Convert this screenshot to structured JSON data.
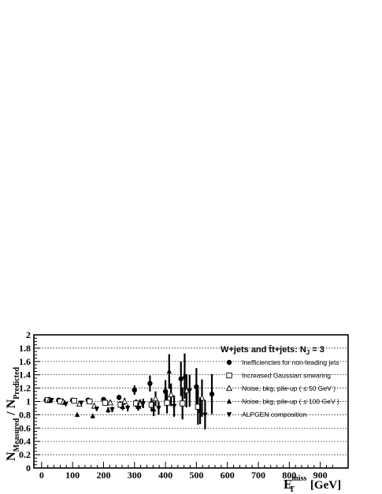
{
  "chart_data": {
    "type": "scatter",
    "title": "",
    "xlim": [
      -25,
      990
    ],
    "ylim": [
      0,
      2
    ],
    "x_ticks": [
      "0",
      "100",
      "200",
      "300",
      "400",
      "500",
      "600",
      "700",
      "800",
      "900"
    ],
    "y_ticks": [
      "0",
      "0.2",
      "0.4",
      "0.6",
      "0.8",
      "1",
      "1.2",
      "1.4",
      "1.6",
      "1.8",
      "2"
    ],
    "y_gridlines": [
      0.2,
      0.4,
      0.6,
      0.8,
      1.0,
      1.2,
      1.4,
      1.6,
      1.8
    ],
    "grid": "horizontal dotted",
    "xlabel": {
      "main": "E",
      "sup": "miss",
      "sub": "T",
      "unit": "[GeV]"
    },
    "ylabel": {
      "n1": "N",
      "s1": "Measured",
      "slash": " / ",
      "n2": "N",
      "s2": "Predicted"
    },
    "legend": {
      "placement": "top-right",
      "title": "W+jets and t̄t+jets: N",
      "title_sub": "J",
      "title_suffix": " = 3"
    },
    "series": [
      {
        "name": "Inefficiencies for non-leading jets",
        "marker": "filled-circle",
        "points": [
          {
            "x": 15,
            "y": 1.02,
            "err": 0.01
          },
          {
            "x": 55,
            "y": 1.02,
            "err": 0.02
          },
          {
            "x": 100,
            "y": 1.02,
            "err": 0.02
          },
          {
            "x": 150,
            "y": 1.02,
            "err": 0.02
          },
          {
            "x": 200,
            "y": 1.03,
            "err": 0.03
          },
          {
            "x": 250,
            "y": 1.06,
            "err": 0.04
          },
          {
            "x": 300,
            "y": 1.17,
            "err": 0.07
          },
          {
            "x": 350,
            "y": 1.27,
            "err": 0.12
          },
          {
            "x": 400,
            "y": 1.15,
            "err": 0.17
          },
          {
            "x": 450,
            "y": 1.34,
            "err": 0.26
          },
          {
            "x": 500,
            "y": 1.22,
            "err": 0.28
          },
          {
            "x": 550,
            "y": 1.11,
            "err": 0.3
          }
        ]
      },
      {
        "name": "Increased Gaussian smearing",
        "marker": "open-square",
        "points": [
          {
            "x": 20,
            "y": 1.02,
            "err": 0.01
          },
          {
            "x": 60,
            "y": 1.0,
            "err": 0.02
          },
          {
            "x": 105,
            "y": 1.01,
            "err": 0.02
          },
          {
            "x": 155,
            "y": 1.0,
            "err": 0.02
          },
          {
            "x": 205,
            "y": 0.98,
            "err": 0.03
          },
          {
            "x": 255,
            "y": 0.95,
            "err": 0.05
          },
          {
            "x": 305,
            "y": 0.97,
            "err": 0.06
          },
          {
            "x": 355,
            "y": 0.95,
            "err": 0.1
          },
          {
            "x": 405,
            "y": 0.98,
            "err": 0.16
          },
          {
            "x": 455,
            "y": 0.97,
            "err": 0.24
          },
          {
            "x": 505,
            "y": 0.92,
            "err": 0.27
          }
        ]
      },
      {
        "name": "Noise, bkg, pile-up ( ≤ 50 GeV )",
        "marker": "open-triangle-up",
        "points": [
          {
            "x": 25,
            "y": 1.02,
            "err": 0.01
          },
          {
            "x": 70,
            "y": 0.99,
            "err": 0.02
          },
          {
            "x": 122,
            "y": 0.96,
            "err": 0.03
          },
          {
            "x": 170,
            "y": 0.93,
            "err": 0.03
          },
          {
            "x": 222,
            "y": 0.98,
            "err": 0.03
          },
          {
            "x": 268,
            "y": 1.0,
            "err": 0.05
          },
          {
            "x": 318,
            "y": 0.96,
            "err": 0.07
          },
          {
            "x": 368,
            "y": 1.04,
            "err": 0.11
          },
          {
            "x": 418,
            "y": 1.1,
            "err": 0.17
          },
          {
            "x": 468,
            "y": 1.16,
            "err": 0.25
          },
          {
            "x": 518,
            "y": 1.05,
            "err": 0.28
          }
        ]
      },
      {
        "name": "Noise, bkg, pile-up ( ≤ 100 GeV )",
        "marker": "filled-triangle-up",
        "points": [
          {
            "x": 28,
            "y": 1.01,
            "err": 0.01
          },
          {
            "x": 75,
            "y": 0.98,
            "err": 0.02
          },
          {
            "x": 115,
            "y": 0.8,
            "err": 0.02
          },
          {
            "x": 165,
            "y": 0.78,
            "err": 0.03
          },
          {
            "x": 215,
            "y": 0.87,
            "err": 0.04
          },
          {
            "x": 262,
            "y": 0.92,
            "err": 0.05
          },
          {
            "x": 312,
            "y": 0.92,
            "err": 0.06
          },
          {
            "x": 362,
            "y": 0.88,
            "err": 0.1
          },
          {
            "x": 412,
            "y": 1.45,
            "err": 0.26
          },
          {
            "x": 462,
            "y": 1.38,
            "err": 0.34
          },
          {
            "x": 512,
            "y": 0.86,
            "err": 0.2
          }
        ]
      },
      {
        "name": "ALPGEN composition",
        "marker": "filled-triangle-down",
        "points": [
          {
            "x": 32,
            "y": 1.02,
            "err": 0.01
          },
          {
            "x": 78,
            "y": 0.96,
            "err": 0.02
          },
          {
            "x": 128,
            "y": 0.98,
            "err": 0.03
          },
          {
            "x": 178,
            "y": 0.89,
            "err": 0.03
          },
          {
            "x": 228,
            "y": 0.88,
            "err": 0.04
          },
          {
            "x": 278,
            "y": 0.9,
            "err": 0.05
          },
          {
            "x": 328,
            "y": 0.97,
            "err": 0.07
          },
          {
            "x": 378,
            "y": 0.9,
            "err": 0.1
          },
          {
            "x": 428,
            "y": 0.93,
            "err": 0.16
          },
          {
            "x": 478,
            "y": 1.16,
            "err": 0.24
          },
          {
            "x": 528,
            "y": 0.8,
            "err": 0.22
          }
        ]
      }
    ]
  }
}
